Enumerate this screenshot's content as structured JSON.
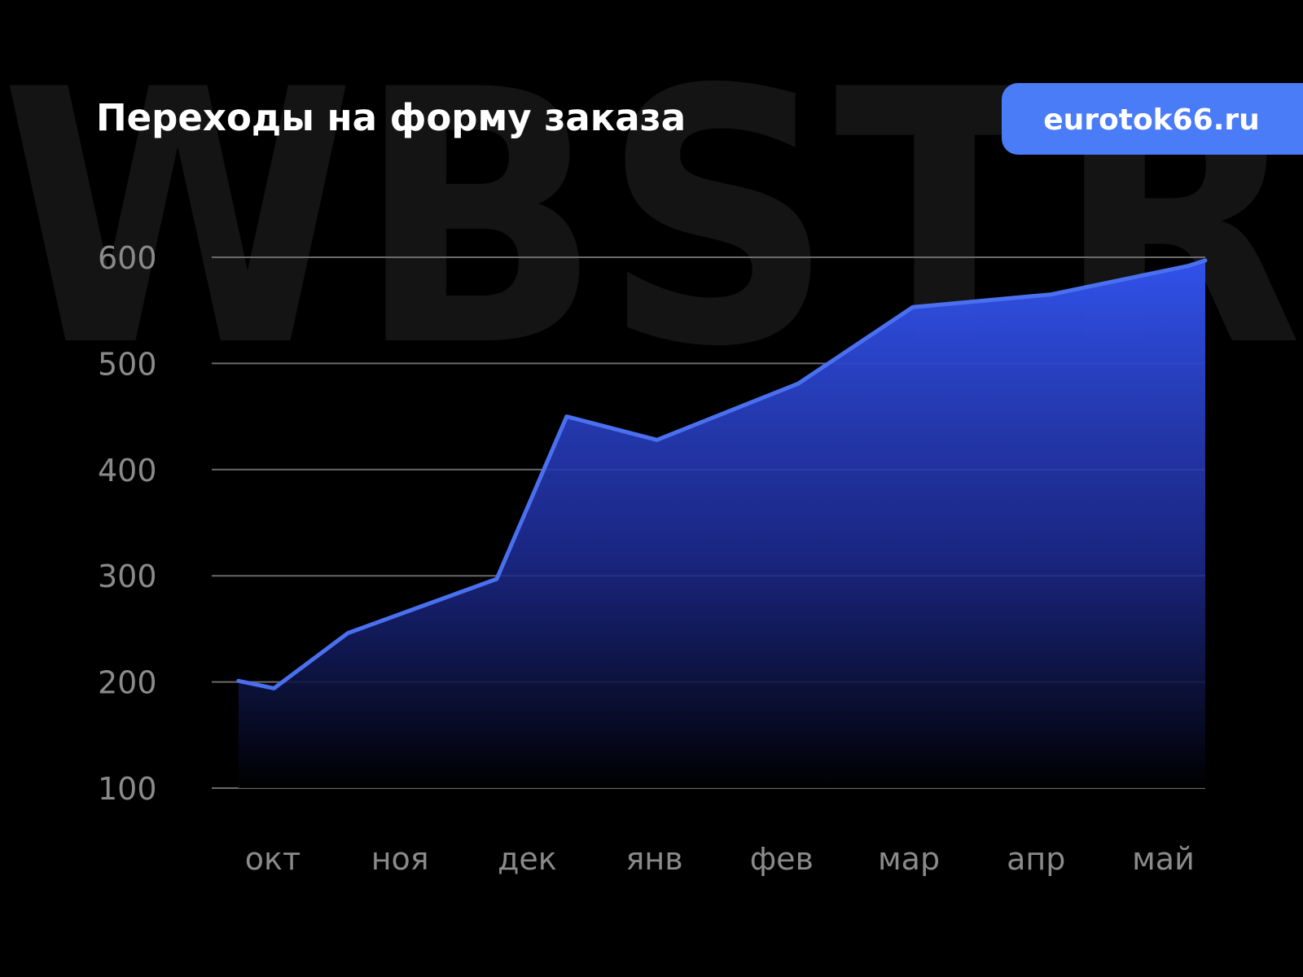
{
  "chart_data": {
    "type": "area",
    "title": "Переходы на форму заказа",
    "badge": "eurotok66.ru",
    "watermark": "WBSTR",
    "x": [
      -0.27,
      0.01,
      0.59,
      1.76,
      2.31,
      3.02,
      4.13,
      5.03,
      6.12,
      7.2,
      7.33
    ],
    "values": [
      201,
      194,
      246,
      297,
      450,
      428,
      481,
      553,
      565,
      592,
      597
    ],
    "color": "#4a70f0",
    "xlim": [
      -0.48,
      7.33
    ],
    "xticks": [
      {
        "value": 0,
        "label": "окт"
      },
      {
        "value": 1,
        "label": "ноя"
      },
      {
        "value": 2,
        "label": "дек"
      },
      {
        "value": 3,
        "label": "янв"
      },
      {
        "value": 4,
        "label": "фев"
      },
      {
        "value": 5,
        "label": "мар"
      },
      {
        "value": 6,
        "label": "апр"
      },
      {
        "value": 7,
        "label": "май"
      }
    ],
    "ylim": [
      100,
      600
    ],
    "yticks": [
      100,
      200,
      300,
      400,
      500,
      600
    ],
    "grid": true
  }
}
